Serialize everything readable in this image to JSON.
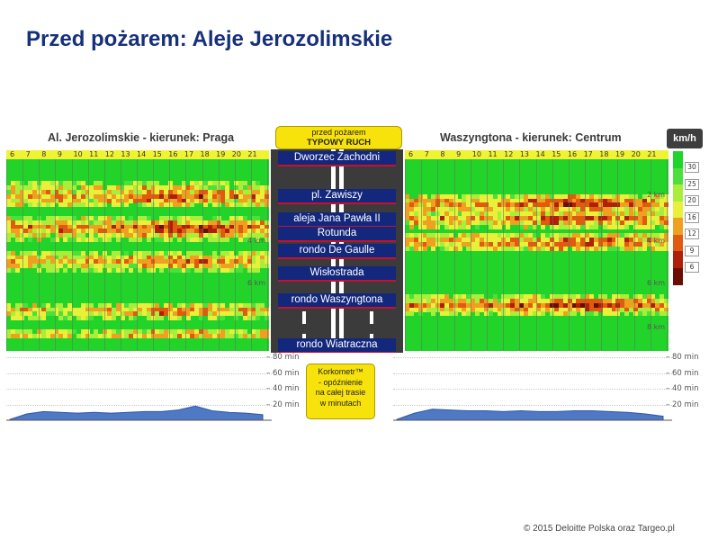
{
  "slide": {
    "title": "Przed pożarem: Aleje Jerozolimskie",
    "footer": "© 2015 Deloitte Polska oraz Targeo.pl"
  },
  "tag": {
    "line1": "przed pożarem",
    "line2": "TYPOWY RUCH"
  },
  "korkometr": {
    "line1": "Korkometr™",
    "line2": "- opóźnienie",
    "line3": "na całej trasie",
    "line4": "w minutach"
  },
  "chart_data": [
    {
      "type": "heatmap",
      "title": "Al. Jerozolimskie - kierunek: Praga",
      "x_tick_labels": [
        "6",
        "7",
        "8",
        "9",
        "10",
        "11",
        "12",
        "13",
        "14",
        "15",
        "16",
        "17",
        "18",
        "19",
        "20",
        "21"
      ],
      "y_tick_labels": [
        "4 km",
        "6 km"
      ],
      "value_unit": "km/h",
      "congestion_bands": [
        {
          "row": 0.18,
          "thickness": 0.07,
          "intensity": 0.45
        },
        {
          "row": 0.35,
          "thickness": 0.06,
          "intensity": 0.6
        },
        {
          "row": 0.52,
          "thickness": 0.05,
          "intensity": 0.45
        },
        {
          "row": 0.78,
          "thickness": 0.04,
          "intensity": 0.4
        },
        {
          "row": 0.9,
          "thickness": 0.03,
          "intensity": 0.35
        }
      ]
    },
    {
      "type": "heatmap",
      "title": "Waszyngtona - kierunek: Centrum",
      "x_tick_labels": [
        "6",
        "7",
        "8",
        "9",
        "10",
        "11",
        "12",
        "13",
        "14",
        "15",
        "16",
        "17",
        "18",
        "19",
        "20",
        "21"
      ],
      "y_tick_labels": [
        "2 km",
        "4 km",
        "6 km",
        "8 km"
      ],
      "value_unit": "km/h",
      "congestion_bands": [
        {
          "row": 0.22,
          "thickness": 0.06,
          "intensity": 0.55
        },
        {
          "row": 0.3,
          "thickness": 0.05,
          "intensity": 0.5
        },
        {
          "row": 0.42,
          "thickness": 0.05,
          "intensity": 0.5
        },
        {
          "row": 0.75,
          "thickness": 0.05,
          "intensity": 0.55
        }
      ]
    },
    {
      "type": "area",
      "title": "",
      "y_tick_labels": [
        "80 min",
        "60 min",
        "40 min",
        "20 min"
      ],
      "ylim": [
        0,
        80
      ],
      "x": [
        6,
        7,
        8,
        9,
        10,
        11,
        12,
        13,
        14,
        15,
        16,
        17,
        18,
        19,
        20,
        21
      ],
      "values": [
        1,
        8,
        11,
        10,
        9,
        10,
        9,
        10,
        11,
        11,
        13,
        18,
        12,
        10,
        9,
        7
      ]
    },
    {
      "type": "area",
      "title": "",
      "y_tick_labels": [
        "80 min",
        "60 min",
        "40 min",
        "20 min"
      ],
      "ylim": [
        0,
        80
      ],
      "x": [
        6,
        7,
        8,
        9,
        10,
        11,
        12,
        13,
        14,
        15,
        16,
        17,
        18,
        19,
        20,
        21
      ],
      "values": [
        1,
        9,
        14,
        13,
        12,
        12,
        11,
        12,
        11,
        11,
        12,
        12,
        11,
        10,
        8,
        5
      ]
    }
  ],
  "legend": {
    "title": "km/h",
    "labels": [
      "30",
      "25",
      "20",
      "16",
      "12",
      "9",
      "6"
    ],
    "colors": [
      "#1ed62a",
      "#4be03a",
      "#a8ee3a",
      "#e8f03a",
      "#f0a020",
      "#e05a10",
      "#b02008",
      "#6a0e04"
    ]
  },
  "stations": [
    "Dworzec Zachodni",
    "pl. Zawiszy",
    "aleja Jana Pawła II",
    "Rotunda",
    "rondo De Gaulle",
    "Wisłostrada",
    "rondo Waszyngtona",
    "rondo Wiatraczna"
  ]
}
